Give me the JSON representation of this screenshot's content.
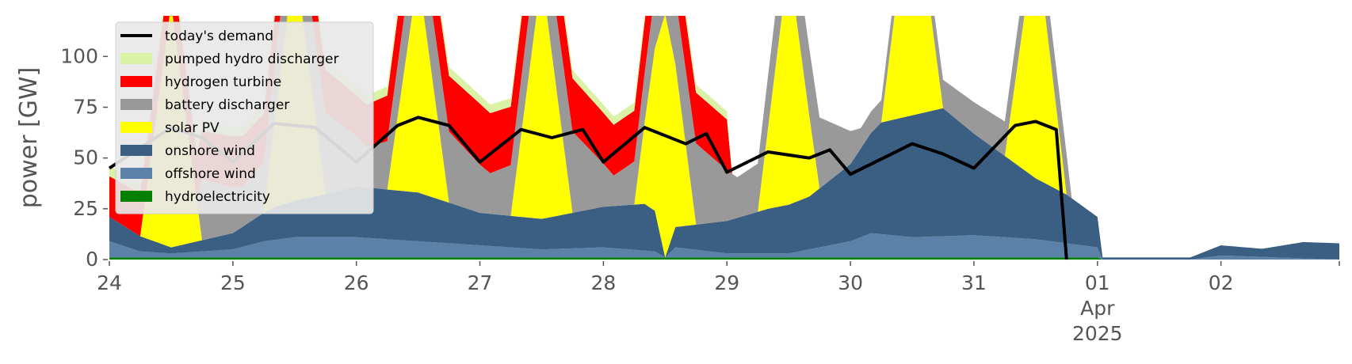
{
  "chart_data": {
    "type": "area",
    "title": "",
    "xlabel": "",
    "ylabel": "power [GW]",
    "xlim": [
      "2025-03-24T00:00",
      "2025-04-02T23:00"
    ],
    "ylim": [
      0,
      120
    ],
    "yticks": [
      0,
      25,
      50,
      75,
      100
    ],
    "x_tick_labels": [
      {
        "date": "2025-03-24",
        "label": "24"
      },
      {
        "date": "2025-03-25",
        "label": "25"
      },
      {
        "date": "2025-03-26",
        "label": "26"
      },
      {
        "date": "2025-03-27",
        "label": "27"
      },
      {
        "date": "2025-03-28",
        "label": "28"
      },
      {
        "date": "2025-03-29",
        "label": "29"
      },
      {
        "date": "2025-03-30",
        "label": "30"
      },
      {
        "date": "2025-03-31",
        "label": "31"
      },
      {
        "date": "2025-04-01",
        "label": "01",
        "sub1": "Apr",
        "sub2": "2025"
      },
      {
        "date": "2025-04-02",
        "label": "02"
      }
    ],
    "grid": false,
    "legend_position": "top-left",
    "series": [
      {
        "name": "hydroelectricity",
        "color": "#008000",
        "unit_note": "GW",
        "points": [
          [
            "2025-03-24T00:00",
            1
          ],
          [
            "2025-04-01T00:00",
            1
          ],
          [
            "2025-04-01T01:00",
            0
          ],
          [
            "2025-04-02T23:00",
            0
          ]
        ]
      },
      {
        "name": "offshore wind",
        "color": "#5b81a8",
        "points": [
          [
            "2025-03-24T00:00",
            8
          ],
          [
            "2025-03-24T06:00",
            3
          ],
          [
            "2025-03-24T12:00",
            2
          ],
          [
            "2025-03-25T00:00",
            4
          ],
          [
            "2025-03-25T06:00",
            8
          ],
          [
            "2025-03-25T12:00",
            10
          ],
          [
            "2025-03-26T00:00",
            10
          ],
          [
            "2025-03-26T12:00",
            8
          ],
          [
            "2025-03-27T00:00",
            6
          ],
          [
            "2025-03-27T12:00",
            4
          ],
          [
            "2025-03-28T00:00",
            5
          ],
          [
            "2025-03-28T10:00",
            3
          ],
          [
            "2025-03-28T12:00",
            0
          ],
          [
            "2025-03-28T14:00",
            5
          ],
          [
            "2025-03-29T00:00",
            2
          ],
          [
            "2025-03-29T12:00",
            2
          ],
          [
            "2025-03-30T00:00",
            8
          ],
          [
            "2025-03-30T04:00",
            12
          ],
          [
            "2025-03-30T12:00",
            10
          ],
          [
            "2025-03-31T00:00",
            11
          ],
          [
            "2025-03-31T12:00",
            9
          ],
          [
            "2025-04-01T00:00",
            5
          ],
          [
            "2025-04-01T01:00",
            0
          ],
          [
            "2025-04-01T18:00",
            0
          ],
          [
            "2025-04-02T00:00",
            2
          ],
          [
            "2025-04-02T23:00",
            0
          ]
        ]
      },
      {
        "name": "onshore wind",
        "color": "#3a5f82",
        "points": [
          [
            "2025-03-24T00:00",
            12
          ],
          [
            "2025-03-24T12:00",
            3
          ],
          [
            "2025-03-25T00:00",
            8
          ],
          [
            "2025-03-25T08:00",
            16
          ],
          [
            "2025-03-25T16:00",
            20
          ],
          [
            "2025-03-26T00:00",
            25
          ],
          [
            "2025-03-26T12:00",
            24
          ],
          [
            "2025-03-27T00:00",
            16
          ],
          [
            "2025-03-27T12:00",
            15
          ],
          [
            "2025-03-28T00:00",
            20
          ],
          [
            "2025-03-28T08:00",
            23
          ],
          [
            "2025-03-28T10:00",
            20
          ],
          [
            "2025-03-28T12:00",
            0
          ],
          [
            "2025-03-28T14:00",
            10
          ],
          [
            "2025-03-29T00:00",
            16
          ],
          [
            "2025-03-29T08:00",
            22
          ],
          [
            "2025-03-29T16:00",
            26
          ],
          [
            "2025-03-30T00:00",
            38
          ],
          [
            "2025-03-30T06:00",
            55
          ],
          [
            "2025-03-30T12:00",
            60
          ],
          [
            "2025-03-30T18:00",
            63
          ],
          [
            "2025-03-31T00:00",
            50
          ],
          [
            "2025-03-31T06:00",
            40
          ],
          [
            "2025-03-31T12:00",
            30
          ],
          [
            "2025-03-31T18:00",
            24
          ],
          [
            "2025-04-01T00:00",
            15
          ],
          [
            "2025-04-01T01:00",
            1
          ],
          [
            "2025-04-01T18:00",
            1
          ],
          [
            "2025-04-02T00:00",
            5
          ],
          [
            "2025-04-02T08:00",
            4
          ],
          [
            "2025-04-02T16:00",
            8
          ],
          [
            "2025-04-02T23:00",
            8
          ]
        ]
      },
      {
        "name": "solar PV",
        "color": "#ffff00",
        "points": [
          [
            "2025-03-24T00:00",
            0
          ],
          [
            "2025-03-24T06:00",
            0
          ],
          [
            "2025-03-24T12:00",
            120
          ],
          [
            "2025-03-24T18:00",
            0
          ],
          [
            "2025-03-25T06:00",
            0
          ],
          [
            "2025-03-25T12:00",
            120
          ],
          [
            "2025-03-25T18:00",
            0
          ],
          [
            "2025-03-26T06:00",
            0
          ],
          [
            "2025-03-26T12:00",
            108
          ],
          [
            "2025-03-26T18:00",
            0
          ],
          [
            "2025-03-27T06:00",
            0
          ],
          [
            "2025-03-27T12:00",
            120
          ],
          [
            "2025-03-27T18:00",
            0
          ],
          [
            "2025-03-28T06:00",
            0
          ],
          [
            "2025-03-28T12:00",
            120
          ],
          [
            "2025-03-28T18:00",
            0
          ],
          [
            "2025-03-29T06:00",
            0
          ],
          [
            "2025-03-29T12:00",
            120
          ],
          [
            "2025-03-29T18:00",
            0
          ],
          [
            "2025-03-30T06:00",
            0
          ],
          [
            "2025-03-30T12:00",
            120
          ],
          [
            "2025-03-30T18:00",
            0
          ],
          [
            "2025-03-31T06:00",
            0
          ],
          [
            "2025-03-31T12:00",
            120
          ],
          [
            "2025-03-31T18:00",
            0
          ],
          [
            "2025-04-02T23:00",
            0
          ]
        ]
      },
      {
        "name": "battery discharger",
        "color": "#999999",
        "points": [
          [
            "2025-03-24T18:00",
            30
          ],
          [
            "2025-03-25T02:00",
            20
          ],
          [
            "2025-03-25T18:00",
            40
          ],
          [
            "2025-03-26T02:00",
            20
          ],
          [
            "2025-03-26T18:00",
            35
          ],
          [
            "2025-03-27T02:00",
            20
          ],
          [
            "2025-03-27T18:00",
            40
          ],
          [
            "2025-03-28T02:00",
            15
          ],
          [
            "2025-03-28T18:00",
            40
          ],
          [
            "2025-03-29T02:00",
            20
          ],
          [
            "2025-03-29T18:00",
            35
          ],
          [
            "2025-03-30T02:00",
            10
          ],
          [
            "2025-03-31T18:00",
            20
          ]
        ]
      },
      {
        "name": "hydrogen turbine",
        "color": "#ff0000",
        "points": [
          [
            "2025-03-24T00:00",
            20
          ],
          [
            "2025-03-25T00:00",
            25
          ],
          [
            "2025-03-26T00:00",
            20
          ],
          [
            "2025-03-27T00:00",
            30
          ],
          [
            "2025-03-28T00:00",
            25
          ],
          [
            "2025-03-29T00:00",
            25
          ]
        ]
      },
      {
        "name": "pumped hydro discharger",
        "color": "#d9f2a6",
        "points": [
          [
            "2025-03-24T00:00",
            5
          ],
          [
            "2025-03-28T00:00",
            4
          ],
          [
            "2025-03-29T00:00",
            4
          ]
        ]
      }
    ],
    "demand_line": {
      "name": "today's demand",
      "color": "#000000",
      "points": [
        [
          "2025-03-24T00:00",
          45
        ],
        [
          "2025-03-24T06:00",
          55
        ],
        [
          "2025-03-24T12:00",
          65
        ],
        [
          "2025-03-24T18:00",
          60
        ],
        [
          "2025-03-25T00:00",
          48
        ],
        [
          "2025-03-25T08:00",
          67
        ],
        [
          "2025-03-25T16:00",
          65
        ],
        [
          "2025-03-26T00:00",
          48
        ],
        [
          "2025-03-26T08:00",
          66
        ],
        [
          "2025-03-26T12:00",
          70
        ],
        [
          "2025-03-26T18:00",
          66
        ],
        [
          "2025-03-27T00:00",
          48
        ],
        [
          "2025-03-27T08:00",
          64
        ],
        [
          "2025-03-27T14:00",
          60
        ],
        [
          "2025-03-27T20:00",
          64
        ],
        [
          "2025-03-28T00:00",
          48
        ],
        [
          "2025-03-28T08:00",
          65
        ],
        [
          "2025-03-28T16:00",
          57
        ],
        [
          "2025-03-28T20:00",
          62
        ],
        [
          "2025-03-29T00:00",
          43
        ],
        [
          "2025-03-29T08:00",
          53
        ],
        [
          "2025-03-29T16:00",
          50
        ],
        [
          "2025-03-29T20:00",
          54
        ],
        [
          "2025-03-30T00:00",
          42
        ],
        [
          "2025-03-30T08:00",
          52
        ],
        [
          "2025-03-30T12:00",
          57
        ],
        [
          "2025-03-30T18:00",
          52
        ],
        [
          "2025-03-31T00:00",
          45
        ],
        [
          "2025-03-31T08:00",
          66
        ],
        [
          "2025-03-31T12:00",
          68
        ],
        [
          "2025-03-31T16:00",
          64
        ],
        [
          "2025-03-31T18:00",
          0
        ]
      ]
    }
  }
}
